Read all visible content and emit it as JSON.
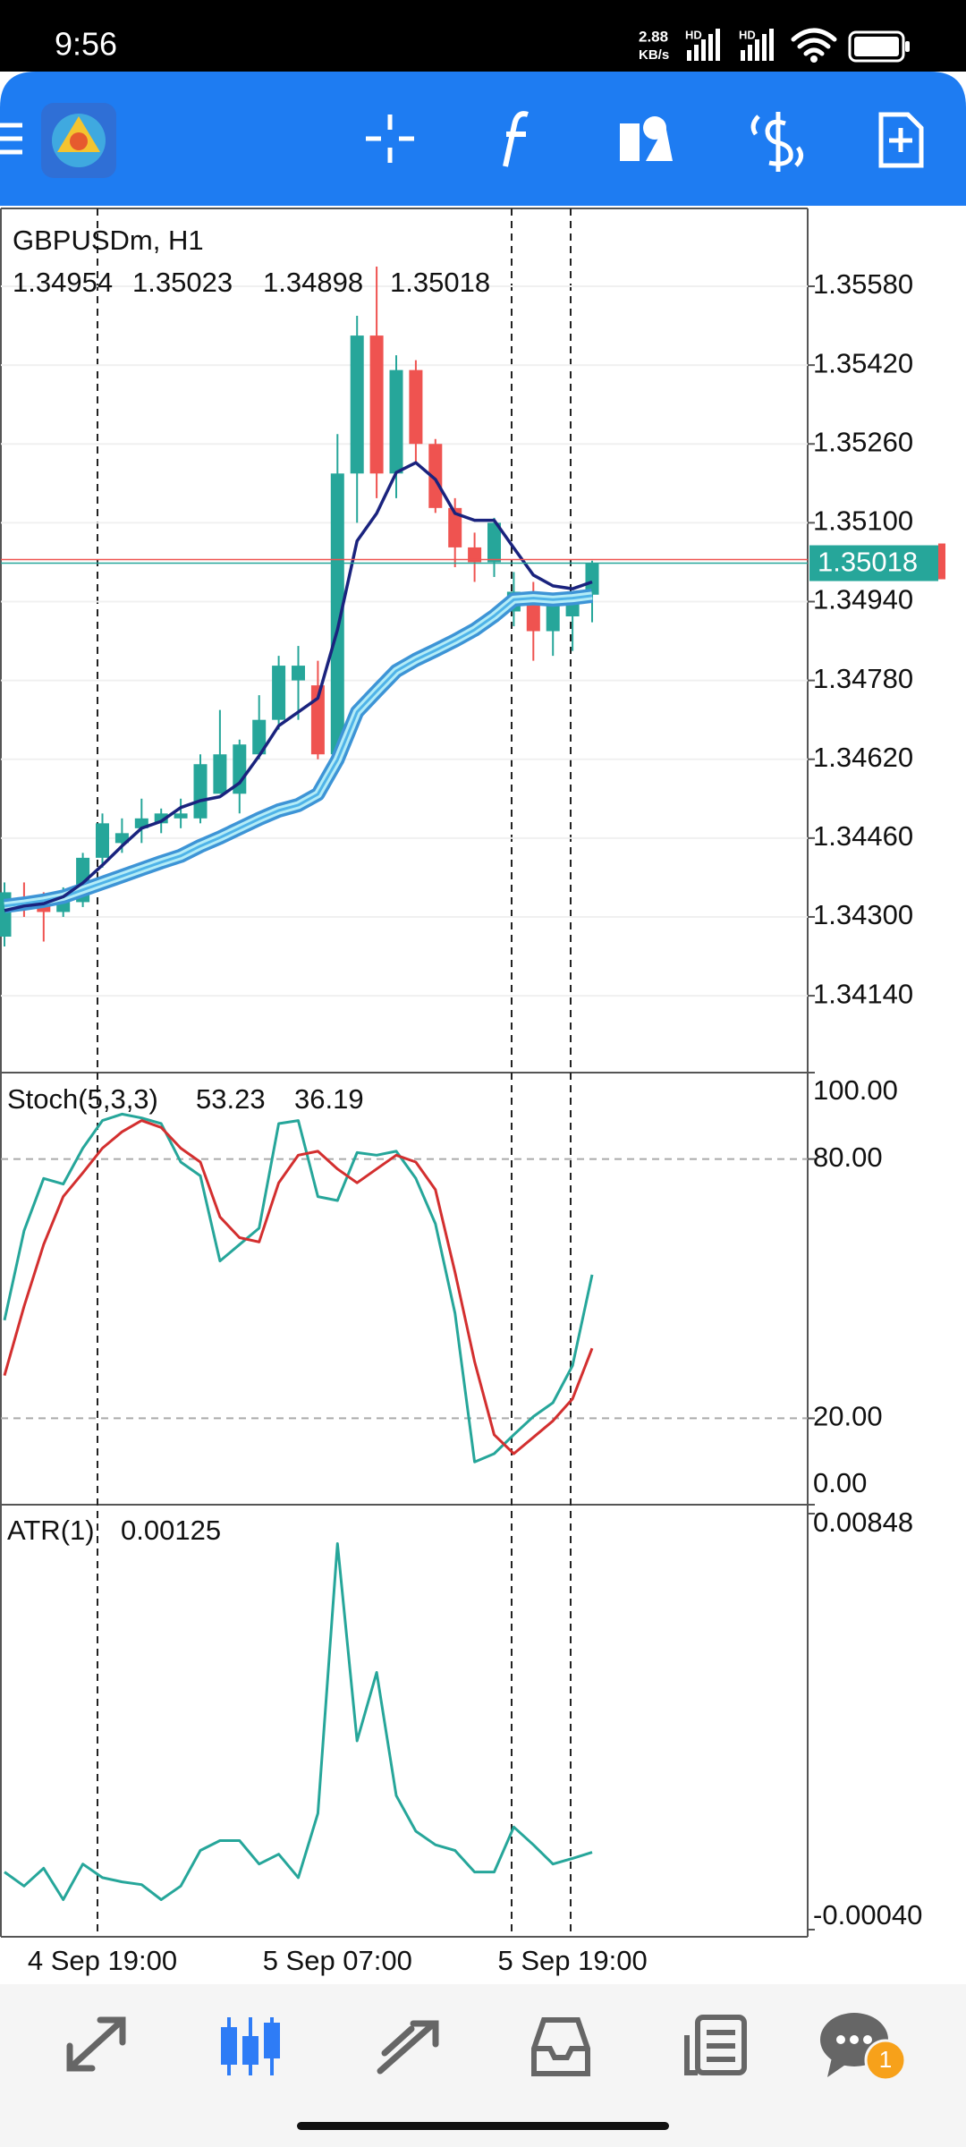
{
  "status_bar": {
    "time": "9:56",
    "speed": "2.88",
    "speed_unit": "KB/s",
    "network_1": "HD",
    "network_2": "HD"
  },
  "navigation": {
    "badge": "1"
  },
  "chart_data": [
    {
      "type": "candlestick",
      "title": "GBPUSDm, H1",
      "categories": [
        null,
        null,
        null,
        null,
        null,
        "4 Sep 19:00",
        null,
        null,
        null,
        null,
        null,
        null,
        null,
        null,
        null,
        null,
        null,
        "5 Sep 07:00",
        null,
        null,
        null,
        null,
        null,
        null,
        null,
        null,
        null,
        null,
        null,
        "5 Sep 19:00",
        null
      ],
      "open": [
        1.3426,
        1.3434,
        1.3434,
        1.3431,
        1.3433,
        1.3442,
        1.3445,
        1.3448,
        1.3449,
        1.345,
        1.345,
        1.3455,
        1.3455,
        1.3463,
        1.347,
        1.3478,
        1.3477,
        1.3463,
        1.352,
        1.3548,
        1.352,
        1.3541,
        1.3526,
        1.3513,
        1.3505,
        1.3502,
        1.3492,
        1.3496,
        1.3488,
        1.3491,
        1.34954
      ],
      "high": [
        1.3437,
        1.3437,
        1.3435,
        1.3436,
        1.3443,
        1.3451,
        1.345,
        1.3454,
        1.3452,
        1.3454,
        1.3463,
        1.3472,
        1.3466,
        1.3475,
        1.3483,
        1.3485,
        1.3482,
        1.3528,
        1.3552,
        1.3562,
        1.3544,
        1.3543,
        1.3527,
        1.3515,
        1.3508,
        1.3511,
        1.35,
        1.3498,
        1.3495,
        1.3496,
        1.35023
      ],
      "low": [
        1.3424,
        1.343,
        1.3425,
        1.343,
        1.3432,
        1.344,
        1.3443,
        1.3445,
        1.3447,
        1.3448,
        1.3449,
        1.3455,
        1.3451,
        1.3462,
        1.3468,
        1.347,
        1.3462,
        1.3461,
        1.351,
        1.3515,
        1.3515,
        1.3522,
        1.3512,
        1.3501,
        1.3498,
        1.3499,
        1.3489,
        1.3482,
        1.3483,
        1.3484,
        1.34898
      ],
      "close": [
        1.3435,
        1.3432,
        1.3431,
        1.3434,
        1.3442,
        1.3449,
        1.3447,
        1.345,
        1.3451,
        1.3451,
        1.3461,
        1.3463,
        1.3465,
        1.347,
        1.3481,
        1.3481,
        1.3463,
        1.352,
        1.3548,
        1.352,
        1.3541,
        1.3526,
        1.3513,
        1.3505,
        1.3502,
        1.351,
        1.3496,
        1.3488,
        1.3494,
        1.3495,
        1.35018
      ],
      "up_color": "#26a69a",
      "down_color": "#ef5350",
      "series": [
        {
          "color": "#4fb3e8",
          "values": [
            1.34322,
            1.34327,
            1.34333,
            1.34341,
            1.34355,
            1.34369,
            1.34383,
            1.34397,
            1.34411,
            1.34424,
            1.34444,
            1.34461,
            1.3448,
            1.34499,
            1.34516,
            1.34527,
            1.34549,
            1.34619,
            1.34716,
            1.34758,
            1.34799,
            1.34822,
            1.34841,
            1.34861,
            1.34883,
            1.34911,
            1.34944,
            1.34947,
            1.34944,
            1.34947,
            1.34952
          ]
        },
        {
          "color": "#1a237e",
          "values": [
            1.34313,
            1.34322,
            1.34327,
            1.34341,
            1.34369,
            1.34405,
            1.34444,
            1.3448,
            1.34494,
            1.34522,
            1.34536,
            1.34544,
            1.34572,
            1.34627,
            1.34688,
            1.34716,
            1.34744,
            1.34883,
            1.35063,
            1.35119,
            1.35202,
            1.35222,
            1.35188,
            1.35119,
            1.35105,
            1.35105,
            1.35049,
            1.34994,
            1.34972,
            1.34966,
            1.3498
          ]
        }
      ],
      "ylim": [
        1.33984,
        1.35738
      ],
      "yticks": [
        {
          "value": 1.3414,
          "label": "1.34140"
        },
        {
          "value": 1.343,
          "label": "1.34300"
        },
        {
          "value": 1.3446,
          "label": "1.34460"
        },
        {
          "value": 1.3462,
          "label": "1.34620"
        },
        {
          "value": 1.3478,
          "label": "1.34780"
        },
        {
          "value": 1.3494,
          "label": "1.34940"
        },
        {
          "value": 1.351,
          "label": "1.35100"
        },
        {
          "value": 1.3526,
          "label": "1.35260"
        },
        {
          "value": 1.3542,
          "label": "1.35420"
        },
        {
          "value": 1.3558,
          "label": "1.35580"
        }
      ],
      "grid": true
    },
    {
      "type": "line",
      "title": "Stoch(5,3,3)",
      "series": [
        {
          "color": "#26a69a",
          "values": [
            42.7,
            63.4,
            75.5,
            74.2,
            82.5,
            88.9,
            90.4,
            89.5,
            88.2,
            79.3,
            76.1,
            56.4,
            60.2,
            64.0,
            88.2,
            88.9,
            71.3,
            70.4,
            81.5,
            80.9,
            81.8,
            75.5,
            65.0,
            44.3,
            9.9,
            11.8,
            16.2,
            20.4,
            23.6,
            32.2,
            53.23
          ]
        },
        {
          "color": "#d32f2f",
          "values": [
            29.9,
            45.9,
            60.2,
            71.3,
            76.8,
            82.5,
            86.3,
            88.9,
            87.3,
            82.5,
            79.3,
            66.6,
            61.8,
            60.8,
            74.5,
            80.9,
            81.8,
            77.7,
            74.5,
            77.7,
            80.9,
            79.3,
            72.9,
            53.8,
            33.1,
            16.2,
            11.8,
            15.6,
            19.4,
            24.5,
            36.19
          ]
        }
      ],
      "ylim": [
        0,
        100
      ],
      "yticks": [
        {
          "value": 0,
          "label": "0.00"
        },
        {
          "value": 20,
          "label": "20.00"
        },
        {
          "value": 80,
          "label": "80.00"
        },
        {
          "value": 100,
          "label": "100.00"
        }
      ]
    },
    {
      "type": "line",
      "title": "ATR(1)",
      "color": "#26a69a",
      "values": [
        0.00083,
        0.00053,
        0.00091,
        0.00024,
        0.001,
        0.00071,
        0.00062,
        0.00056,
        0.00024,
        0.00053,
        0.00129,
        0.0015,
        0.0015,
        0.001,
        0.00121,
        0.00071,
        0.00208,
        0.00784,
        0.00363,
        0.00509,
        0.00246,
        0.0017,
        0.00141,
        0.00129,
        0.00083,
        0.00083,
        0.00179,
        0.00141,
        0.001,
        0.00112,
        0.00125
      ],
      "ylim": [
        -0.0004,
        0.00848
      ],
      "yticks": [
        {
          "value": -0.0004,
          "label": "-0.00040"
        },
        0.00848
      ]
    }
  ]
}
